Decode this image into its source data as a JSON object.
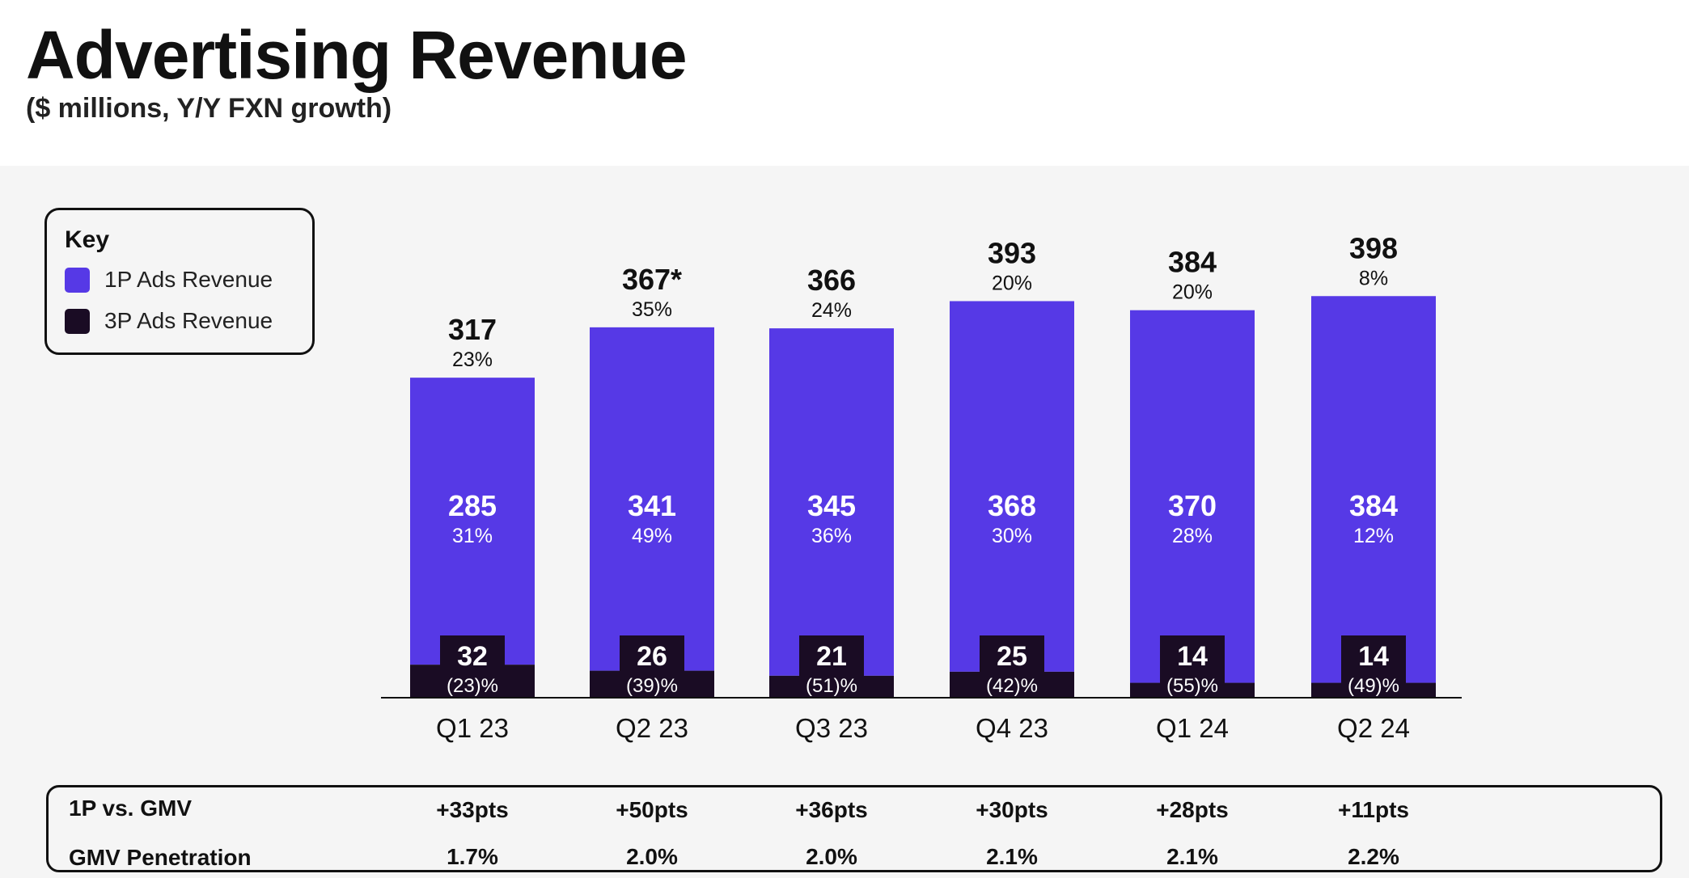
{
  "title": "Advertising Revenue",
  "subtitle": "($ millions, Y/Y FXN growth)",
  "legend": {
    "title": "Key",
    "items": [
      {
        "label": "1P Ads Revenue",
        "color": "#5639e6"
      },
      {
        "label": "3P Ads Revenue",
        "color": "#1a0c24"
      }
    ]
  },
  "chart_data": {
    "type": "bar",
    "stacked": true,
    "categories": [
      "Q1 23",
      "Q2 23",
      "Q3 23",
      "Q4 23",
      "Q1 24",
      "Q2 24"
    ],
    "series": [
      {
        "name": "3P Ads Revenue",
        "color": "#1a0c24",
        "values": [
          32,
          26,
          21,
          25,
          14,
          14
        ],
        "growth_labels": [
          "(23)%",
          "(39)%",
          "(51)%",
          "(42)%",
          "(55)%",
          "(49)%"
        ]
      },
      {
        "name": "1P Ads Revenue",
        "color": "#5639e6",
        "values": [
          285,
          341,
          345,
          368,
          370,
          384
        ],
        "growth_labels": [
          "31%",
          "49%",
          "36%",
          "30%",
          "28%",
          "12%"
        ]
      }
    ],
    "totals": {
      "labels": [
        "317",
        "367*",
        "366",
        "393",
        "384",
        "398"
      ],
      "values": [
        317,
        367,
        366,
        393,
        384,
        398
      ],
      "growth_labels": [
        "23%",
        "35%",
        "24%",
        "20%",
        "20%",
        "8%"
      ]
    },
    "ylim": [
      0,
      400
    ],
    "xlabel": "",
    "ylabel": "",
    "grid": false
  },
  "table": {
    "rows": [
      {
        "label": "1P vs. GMV",
        "values": [
          "+33pts",
          "+50pts",
          "+36pts",
          "+30pts",
          "+28pts",
          "+11pts"
        ]
      },
      {
        "label": "GMV Penetration",
        "values": [
          "1.7%",
          "2.0%",
          "2.0%",
          "2.1%",
          "2.1%",
          "2.2%"
        ]
      }
    ]
  }
}
